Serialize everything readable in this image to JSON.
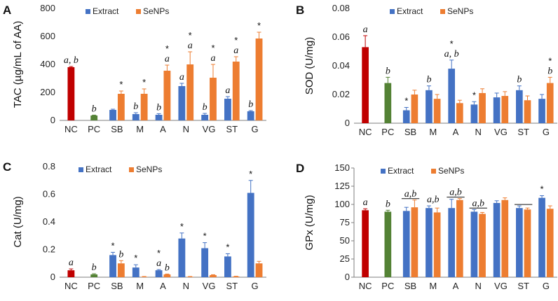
{
  "colors": {
    "extract": "#4472C4",
    "senps": "#ED7D31",
    "nc": "#C00000",
    "pc": "#548235",
    "axis": "#7f7f7f",
    "grid": "#d9d9d9"
  },
  "chart_data": [
    {
      "panel": "A",
      "type": "bar",
      "ylabel": "TAC (µg/mL of AA)",
      "ylim": [
        0,
        800
      ],
      "yticks": [
        "0",
        "200",
        "400",
        "600",
        "800"
      ],
      "ytick_values": [
        0,
        200,
        400,
        600,
        800
      ],
      "legend": [
        "Extract",
        "SeNPs"
      ],
      "categories": [
        "NC",
        "PC",
        "SB",
        "M",
        "A",
        "N",
        "VG",
        "ST",
        "G"
      ],
      "series": [
        {
          "name": "Extract",
          "values": [
            380,
            35,
            75,
            45,
            40,
            245,
            40,
            155,
            65
          ],
          "errors": [
            5,
            3,
            5,
            10,
            8,
            20,
            10,
            15,
            5
          ]
        },
        {
          "name": "SeNPs",
          "values": [
            null,
            null,
            190,
            190,
            355,
            400,
            305,
            420,
            585
          ],
          "errors": [
            null,
            null,
            20,
            35,
            40,
            90,
            95,
            35,
            45
          ]
        }
      ],
      "annotations": [
        {
          "cat": "NC",
          "series": "Extract",
          "lines": [
            "a, b"
          ]
        },
        {
          "cat": "PC",
          "series": "Extract",
          "lines": [
            "b"
          ]
        },
        {
          "cat": "SB",
          "series": "SeNPs",
          "lines": [
            "*"
          ]
        },
        {
          "cat": "M",
          "series": "Extract",
          "lines": [
            "b"
          ]
        },
        {
          "cat": "M",
          "series": "SeNPs",
          "lines": [
            "*"
          ]
        },
        {
          "cat": "A",
          "series": "Extract",
          "lines": [
            "b"
          ]
        },
        {
          "cat": "A",
          "series": "SeNPs",
          "lines": [
            "*",
            "a"
          ]
        },
        {
          "cat": "N",
          "series": "Extract",
          "lines": [
            "a"
          ]
        },
        {
          "cat": "N",
          "series": "SeNPs",
          "lines": [
            "*",
            "a"
          ]
        },
        {
          "cat": "VG",
          "series": "Extract",
          "lines": [
            "b"
          ]
        },
        {
          "cat": "VG",
          "series": "SeNPs",
          "lines": [
            "*",
            "a"
          ]
        },
        {
          "cat": "ST",
          "series": "Extract",
          "lines": [
            "a"
          ]
        },
        {
          "cat": "ST",
          "series": "SeNPs",
          "lines": [
            "*",
            "a"
          ]
        },
        {
          "cat": "G",
          "series": "Extract",
          "lines": [
            "b"
          ]
        },
        {
          "cat": "G",
          "series": "SeNPs",
          "lines": [
            "*"
          ]
        }
      ],
      "underlines": []
    },
    {
      "panel": "B",
      "type": "bar",
      "ylabel": "SOD (U/mg)",
      "ylim": [
        0,
        0.08
      ],
      "yticks": [
        "0",
        "0.02",
        "0.04",
        "0.06",
        "0.08"
      ],
      "ytick_values": [
        0,
        0.02,
        0.04,
        0.06,
        0.08
      ],
      "legend": [
        "Extract",
        "SeNPs"
      ],
      "categories": [
        "NC",
        "PC",
        "SB",
        "M",
        "A",
        "N",
        "VG",
        "ST",
        "G"
      ],
      "series": [
        {
          "name": "Extract",
          "values": [
            0.053,
            0.028,
            0.009,
            0.023,
            0.038,
            0.013,
            0.018,
            0.023,
            0.017
          ],
          "errors": [
            0.008,
            0.004,
            0.002,
            0.003,
            0.006,
            0.002,
            0.003,
            0.003,
            0.003
          ]
        },
        {
          "name": "SeNPs",
          "values": [
            null,
            null,
            0.02,
            0.017,
            0.014,
            0.021,
            0.019,
            0.016,
            0.028
          ],
          "errors": [
            null,
            null,
            0.003,
            0.003,
            0.002,
            0.003,
            0.003,
            0.003,
            0.004
          ]
        }
      ],
      "annotations": [
        {
          "cat": "NC",
          "series": "Extract",
          "lines": [
            "a"
          ]
        },
        {
          "cat": "PC",
          "series": "Extract",
          "lines": [
            "b"
          ]
        },
        {
          "cat": "SB",
          "series": "Extract",
          "lines": [
            "*"
          ]
        },
        {
          "cat": "M",
          "series": "Extract",
          "lines": [
            "b"
          ]
        },
        {
          "cat": "A",
          "series": "Extract",
          "lines": [
            "*",
            "a, b"
          ]
        },
        {
          "cat": "N",
          "series": "Extract",
          "lines": [
            "*"
          ]
        },
        {
          "cat": "ST",
          "series": "Extract",
          "lines": [
            "b"
          ]
        },
        {
          "cat": "G",
          "series": "SeNPs",
          "lines": [
            "*",
            "b"
          ]
        }
      ],
      "underlines": []
    },
    {
      "panel": "C",
      "type": "bar",
      "ylabel": "Cat (U/mg)",
      "ylim": [
        0,
        0.8
      ],
      "yticks": [
        "0",
        "0.2",
        "0.4",
        "0.6",
        "0.8"
      ],
      "ytick_values": [
        0,
        0.2,
        0.4,
        0.6,
        0.8
      ],
      "legend": [
        "Extract",
        "SeNPs"
      ],
      "categories": [
        "NC",
        "PC",
        "SB",
        "M",
        "A",
        "N",
        "VG",
        "ST",
        "G"
      ],
      "series": [
        {
          "name": "Extract",
          "values": [
            0.05,
            0.02,
            0.16,
            0.07,
            0.05,
            0.28,
            0.21,
            0.15,
            0.61
          ],
          "errors": [
            0.01,
            0.005,
            0.02,
            0.02,
            0.005,
            0.04,
            0.04,
            0.02,
            0.09
          ]
        },
        {
          "name": "SeNPs",
          "values": [
            null,
            null,
            0.1,
            0.003,
            0.02,
            0.003,
            0.015,
            0.005,
            0.1
          ],
          "errors": [
            null,
            null,
            0.02,
            0.002,
            0.003,
            0.002,
            0.003,
            0.002,
            0.015
          ]
        }
      ],
      "annotations": [
        {
          "cat": "NC",
          "series": "Extract",
          "lines": [
            "a"
          ]
        },
        {
          "cat": "PC",
          "series": "Extract",
          "lines": [
            "b"
          ]
        },
        {
          "cat": "SB",
          "series": "Extract",
          "lines": [
            "*"
          ]
        },
        {
          "cat": "SB",
          "series": "SeNPs",
          "lines": [
            "b"
          ]
        },
        {
          "cat": "M",
          "series": "Extract",
          "lines": [
            "*"
          ]
        },
        {
          "cat": "A",
          "series": "Extract",
          "lines": [
            "*",
            "a"
          ]
        },
        {
          "cat": "A",
          "series": "SeNPs",
          "lines": [
            "b"
          ]
        },
        {
          "cat": "N",
          "series": "Extract",
          "lines": [
            "*"
          ]
        },
        {
          "cat": "VG",
          "series": "Extract",
          "lines": [
            "*"
          ]
        },
        {
          "cat": "ST",
          "series": "Extract",
          "lines": [
            "*"
          ]
        },
        {
          "cat": "G",
          "series": "Extract",
          "lines": [
            "*"
          ]
        }
      ],
      "underlines": []
    },
    {
      "panel": "D",
      "type": "bar",
      "ylabel": "GPx (U/mg)",
      "ylim": [
        0,
        150
      ],
      "yticks": [
        "0",
        "25",
        "50",
        "75",
        "100",
        "125",
        "150"
      ],
      "ytick_values": [
        0,
        25,
        50,
        75,
        100,
        125,
        150
      ],
      "legend": [
        "Extract",
        "SeNPs"
      ],
      "categories": [
        "NC",
        "PC",
        "SB",
        "M",
        "A",
        "N",
        "VG",
        "ST",
        "G"
      ],
      "series": [
        {
          "name": "Extract",
          "values": [
            92,
            90,
            91,
            95,
            95,
            90,
            102,
            95,
            109
          ],
          "errors": [
            2,
            2,
            5,
            3,
            12,
            3,
            3,
            3,
            3
          ]
        },
        {
          "name": "SeNPs",
          "values": [
            null,
            null,
            96,
            89,
            106,
            87,
            106,
            93,
            94
          ],
          "errors": [
            null,
            null,
            10,
            6,
            2,
            2,
            3,
            2,
            4
          ]
        }
      ],
      "annotations": [
        {
          "cat": "NC",
          "series": "Extract",
          "lines": [
            "a"
          ]
        },
        {
          "cat": "PC",
          "series": "Extract",
          "lines": [
            "b"
          ]
        },
        {
          "cat": "SB",
          "series": "group",
          "lines": [
            "a,b"
          ]
        },
        {
          "cat": "M",
          "series": "group",
          "lines": [
            "a,b"
          ]
        },
        {
          "cat": "A",
          "series": "group",
          "lines": [
            "a,b"
          ]
        },
        {
          "cat": "N",
          "series": "group",
          "lines": [
            "a,b"
          ]
        },
        {
          "cat": "G",
          "series": "Extract",
          "lines": [
            "*"
          ]
        }
      ],
      "underlines": [
        "SB",
        "A",
        "N",
        "ST"
      ]
    }
  ]
}
